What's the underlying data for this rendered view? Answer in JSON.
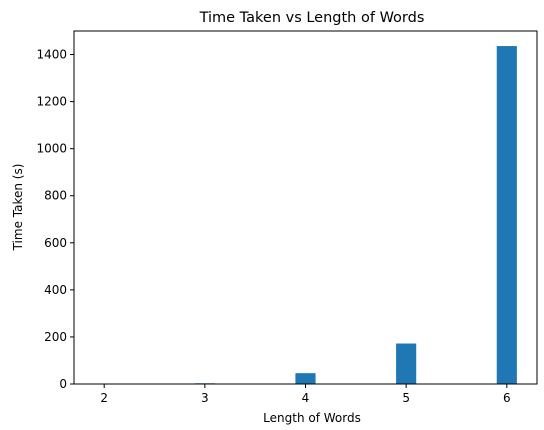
{
  "chart_data": {
    "type": "bar",
    "title": "Time Taken vs Length of Words",
    "xlabel": "Length of Words",
    "ylabel": "Time Taken (s)",
    "x": [
      2,
      3,
      4,
      5,
      6
    ],
    "values": [
      0.2,
      3,
      46,
      172,
      1436
    ],
    "xlim": [
      1.7,
      6.3
    ],
    "ylim": [
      0,
      1500
    ],
    "yticks": [
      0,
      200,
      400,
      600,
      800,
      1000,
      1200,
      1400
    ],
    "xticks": [
      2,
      3,
      4,
      5,
      6
    ],
    "bar_color": "#1f77b4",
    "grid": false,
    "legend": "none"
  }
}
